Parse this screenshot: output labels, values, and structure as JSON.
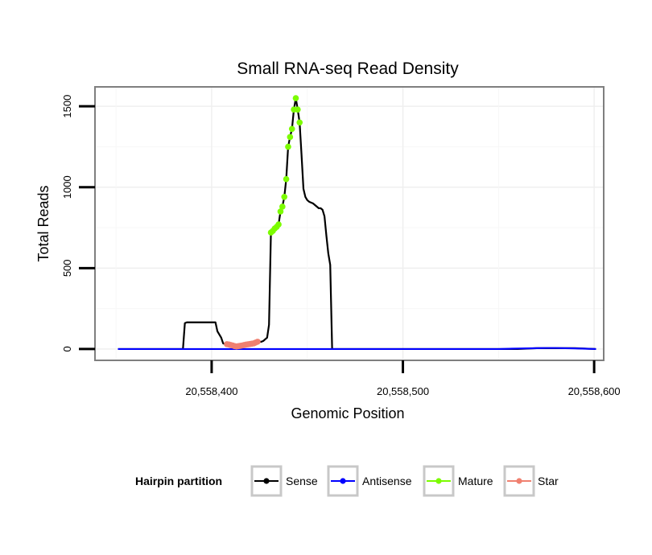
{
  "chart_data": {
    "type": "line",
    "title": "Small RNA-seq Read Density",
    "xlabel": "Genomic Position",
    "ylabel": "Total Reads",
    "xlim": [
      20558339,
      20558605
    ],
    "ylim": [
      -70,
      1620
    ],
    "x_ticks": [
      {
        "value": 20558400,
        "label": "20,558,400"
      },
      {
        "value": 20558500,
        "label": "20,558,500"
      },
      {
        "value": 20558600,
        "label": "20,558,600"
      }
    ],
    "y_ticks": [
      {
        "value": 0,
        "label": "0"
      },
      {
        "value": 500,
        "label": "500"
      },
      {
        "value": 1000,
        "label": "1000"
      },
      {
        "value": 1500,
        "label": "1500"
      }
    ],
    "grid": true,
    "legend": {
      "title": "Hairpin partition",
      "position": "bottom",
      "entries": [
        {
          "name": "Sense",
          "color": "#000000"
        },
        {
          "name": "Antisense",
          "color": "#0000ff"
        },
        {
          "name": "Mature",
          "color": "#7cfc00"
        },
        {
          "name": "Star",
          "color": "#f08070"
        }
      ]
    },
    "series": [
      {
        "name": "Sense",
        "color": "#000000",
        "markers": false,
        "x": [
          20558351,
          20558385,
          20558386,
          20558387,
          20558388,
          20558389,
          20558390,
          20558391,
          20558392,
          20558393,
          20558394,
          20558395,
          20558396,
          20558397,
          20558398,
          20558399,
          20558400,
          20558401,
          20558402,
          20558403,
          20558404,
          20558405,
          20558406,
          20558407,
          20558408,
          20558409,
          20558410,
          20558411,
          20558412,
          20558413,
          20558414,
          20558415,
          20558416,
          20558417,
          20558418,
          20558419,
          20558420,
          20558421,
          20558422,
          20558423,
          20558424,
          20558425,
          20558426,
          20558427,
          20558428,
          20558429,
          20558430,
          20558431,
          20558432,
          20558433,
          20558434,
          20558435,
          20558436,
          20558437,
          20558438,
          20558439,
          20558440,
          20558441,
          20558442,
          20558443,
          20558444,
          20558445,
          20558446,
          20558447,
          20558448,
          20558449,
          20558450,
          20558451,
          20558452,
          20558453,
          20558454,
          20558455,
          20558456,
          20558457,
          20558458,
          20558459,
          20558460,
          20558461,
          20558462,
          20558463,
          20558464,
          20558465,
          20558466,
          20558467,
          20558500,
          20558550,
          20558560,
          20558570,
          20558575,
          20558580,
          20558590,
          20558601
        ],
        "y": [
          0,
          0,
          160,
          165,
          165,
          165,
          165,
          165,
          165,
          165,
          165,
          165,
          165,
          165,
          165,
          165,
          165,
          165,
          165,
          110,
          90,
          70,
          35,
          30,
          25,
          20,
          18,
          18,
          18,
          18,
          18,
          20,
          22,
          25,
          27,
          29,
          31,
          33,
          35,
          40,
          45,
          45,
          45,
          50,
          60,
          70,
          150,
          720,
          730,
          745,
          755,
          770,
          850,
          880,
          940,
          1050,
          1250,
          1310,
          1360,
          1480,
          1550,
          1480,
          1400,
          1200,
          990,
          940,
          920,
          910,
          905,
          900,
          890,
          880,
          870,
          870,
          860,
          820,
          700,
          590,
          520,
          0,
          0,
          0,
          0,
          0,
          0,
          0,
          0,
          5,
          5,
          5,
          5,
          0
        ]
      },
      {
        "name": "Antisense",
        "color": "#0000ff",
        "markers": false,
        "x": [
          20558351,
          20558400,
          20558450,
          20558500,
          20558550,
          20558560,
          20558570,
          20558575,
          20558580,
          20558590,
          20558601
        ],
        "y": [
          0,
          0,
          0,
          0,
          0,
          3,
          5,
          6,
          6,
          4,
          0
        ]
      },
      {
        "name": "Mature",
        "color": "#7cfc00",
        "markers": true,
        "x": [
          20558431,
          20558432,
          20558433,
          20558434,
          20558435,
          20558436,
          20558437,
          20558438,
          20558439,
          20558440,
          20558441,
          20558442,
          20558443,
          20558444,
          20558445,
          20558446
        ],
        "y": [
          720,
          730,
          745,
          755,
          770,
          850,
          880,
          940,
          1050,
          1250,
          1310,
          1360,
          1480,
          1550,
          1480,
          1400
        ]
      },
      {
        "name": "Star",
        "color": "#f08070",
        "markers": true,
        "x": [
          20558408,
          20558409,
          20558410,
          20558411,
          20558412,
          20558413,
          20558414,
          20558415,
          20558416,
          20558417,
          20558418,
          20558419,
          20558420,
          20558421,
          20558422,
          20558423,
          20558424
        ],
        "y": [
          30,
          28,
          25,
          22,
          18,
          16,
          18,
          20,
          22,
          25,
          27,
          29,
          31,
          33,
          35,
          40,
          45
        ]
      }
    ]
  }
}
